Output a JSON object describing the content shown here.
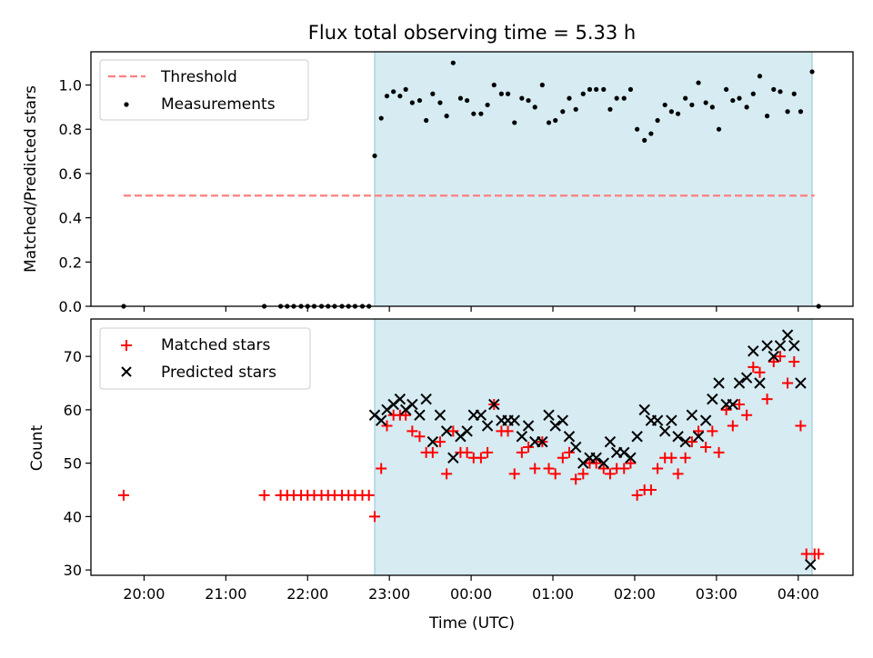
{
  "chart_data": [
    {
      "type": "scatter",
      "title": "Flux total observing time = 5.33 h",
      "xlabel": "",
      "ylabel": "Matched/Predicted stars",
      "xlim_hours": [
        19.35,
        28.67
      ],
      "ylim": [
        0.0,
        1.15
      ],
      "yticks": [
        "0.0",
        "0.2",
        "0.4",
        "0.6",
        "0.8",
        "1.0"
      ],
      "grid": false,
      "legend_position": "upper-left",
      "shaded_region_hours": [
        22.82,
        28.17
      ],
      "shade_color": "#add8e6",
      "threshold": {
        "name": "Threshold",
        "value": 0.5,
        "x_range_hours": [
          19.75,
          28.2
        ],
        "color": "#ff7f7f"
      },
      "series": [
        {
          "name": "Measurements",
          "color": "#000000",
          "x_hours": [
            19.75,
            21.47,
            21.67,
            21.75,
            21.83,
            21.92,
            22.0,
            22.08,
            22.17,
            22.25,
            22.33,
            22.42,
            22.5,
            22.58,
            22.67,
            22.75,
            22.82,
            22.9,
            22.97,
            23.05,
            23.13,
            23.2,
            23.28,
            23.37,
            23.45,
            23.53,
            23.62,
            23.7,
            23.78,
            23.87,
            23.95,
            24.03,
            24.12,
            24.2,
            24.28,
            24.37,
            24.45,
            24.53,
            24.62,
            24.7,
            24.78,
            24.87,
            24.95,
            25.03,
            25.12,
            25.2,
            25.28,
            25.37,
            25.45,
            25.53,
            25.62,
            25.7,
            25.78,
            25.87,
            25.95,
            26.03,
            26.12,
            26.2,
            26.28,
            26.37,
            26.45,
            26.53,
            26.62,
            26.7,
            26.78,
            26.87,
            26.95,
            27.03,
            27.12,
            27.2,
            27.28,
            27.37,
            27.45,
            27.53,
            27.62,
            27.7,
            27.78,
            27.87,
            27.95,
            28.03,
            28.17,
            28.25
          ],
          "y": [
            0.0,
            0.0,
            0.0,
            0.0,
            0.0,
            0.0,
            0.0,
            0.0,
            0.0,
            0.0,
            0.0,
            0.0,
            0.0,
            0.0,
            0.0,
            0.0,
            0.68,
            0.85,
            0.95,
            0.97,
            0.95,
            0.98,
            0.92,
            0.93,
            0.84,
            0.96,
            0.92,
            0.86,
            1.1,
            0.94,
            0.93,
            0.87,
            0.87,
            0.91,
            1.0,
            0.96,
            0.96,
            0.83,
            0.94,
            0.93,
            0.9,
            1.0,
            0.83,
            0.84,
            0.88,
            0.94,
            0.89,
            0.96,
            0.98,
            0.98,
            0.98,
            0.89,
            0.94,
            0.94,
            0.98,
            0.8,
            0.75,
            0.78,
            0.84,
            0.91,
            0.88,
            0.87,
            0.94,
            0.91,
            1.01,
            0.92,
            0.9,
            0.8,
            0.98,
            0.93,
            0.94,
            0.9,
            0.96,
            1.04,
            0.86,
            0.98,
            0.97,
            0.88,
            0.96,
            0.88,
            1.06,
            0.0
          ]
        }
      ]
    },
    {
      "type": "scatter",
      "title": "",
      "xlabel": "Time (UTC)",
      "ylabel": "Count",
      "xlim_hours": [
        19.35,
        28.67
      ],
      "ylim": [
        29.0,
        77.0
      ],
      "yticks": [
        "30",
        "40",
        "50",
        "60",
        "70"
      ],
      "xticks": [
        "20:00",
        "21:00",
        "22:00",
        "23:00",
        "00:00",
        "01:00",
        "02:00",
        "03:00",
        "04:00"
      ],
      "grid": false,
      "legend_position": "upper-left",
      "shaded_region_hours": [
        22.82,
        28.17
      ],
      "shade_color": "#add8e6",
      "series": [
        {
          "name": "Matched stars",
          "marker": "plus",
          "color": "#ff0000",
          "x_hours": [
            19.75,
            21.47,
            21.67,
            21.75,
            21.83,
            21.92,
            22.0,
            22.08,
            22.17,
            22.25,
            22.33,
            22.42,
            22.5,
            22.58,
            22.67,
            22.75,
            22.82,
            22.9,
            22.97,
            23.05,
            23.13,
            23.2,
            23.28,
            23.37,
            23.45,
            23.53,
            23.62,
            23.7,
            23.78,
            23.87,
            23.95,
            24.03,
            24.12,
            24.2,
            24.28,
            24.37,
            24.45,
            24.53,
            24.62,
            24.7,
            24.78,
            24.87,
            24.95,
            25.03,
            25.12,
            25.2,
            25.28,
            25.37,
            25.45,
            25.53,
            25.62,
            25.7,
            25.78,
            25.87,
            25.95,
            26.03,
            26.12,
            26.2,
            26.28,
            26.37,
            26.45,
            26.53,
            26.62,
            26.7,
            26.78,
            26.87,
            26.95,
            27.03,
            27.12,
            27.2,
            27.28,
            27.37,
            27.45,
            27.53,
            27.62,
            27.7,
            27.78,
            27.87,
            27.95,
            28.03,
            28.1,
            28.2,
            28.25
          ],
          "y": [
            44,
            44,
            44,
            44,
            44,
            44,
            44,
            44,
            44,
            44,
            44,
            44,
            44,
            44,
            44,
            44,
            40,
            49,
            57,
            59,
            59,
            59,
            56,
            55,
            52,
            52,
            54,
            48,
            56,
            52,
            52,
            51,
            51,
            52,
            61,
            56,
            56,
            48,
            52,
            53,
            49,
            54,
            49,
            48,
            51,
            52,
            47,
            48,
            50,
            50,
            49,
            48,
            49,
            49,
            50,
            44,
            45,
            45,
            49,
            51,
            51,
            48,
            51,
            54,
            56,
            53,
            56,
            52,
            60,
            57,
            61,
            59,
            68,
            67,
            62,
            69,
            70,
            65,
            69,
            57,
            33,
            33,
            33
          ]
        },
        {
          "name": "Predicted stars",
          "marker": "x",
          "color": "#000000",
          "x_hours": [
            22.82,
            22.9,
            22.97,
            23.05,
            23.13,
            23.2,
            23.28,
            23.37,
            23.45,
            23.53,
            23.62,
            23.7,
            23.78,
            23.87,
            23.95,
            24.03,
            24.12,
            24.2,
            24.28,
            24.37,
            24.45,
            24.53,
            24.62,
            24.7,
            24.78,
            24.87,
            24.95,
            25.03,
            25.12,
            25.2,
            25.28,
            25.37,
            25.45,
            25.53,
            25.62,
            25.7,
            25.78,
            25.87,
            25.95,
            26.03,
            26.12,
            26.2,
            26.28,
            26.37,
            26.45,
            26.53,
            26.62,
            26.7,
            26.78,
            26.87,
            26.95,
            27.03,
            27.12,
            27.2,
            27.28,
            27.37,
            27.45,
            27.53,
            27.62,
            27.7,
            27.78,
            27.87,
            27.95,
            28.03,
            28.15
          ],
          "y": [
            59,
            58,
            60,
            61,
            62,
            60,
            61,
            59,
            62,
            54,
            59,
            56,
            51,
            55,
            56,
            59,
            59,
            57,
            61,
            58,
            58,
            58,
            55,
            57,
            54,
            54,
            59,
            57,
            58,
            55,
            53,
            50,
            51,
            51,
            50,
            54,
            52,
            52,
            51,
            55,
            60,
            58,
            58,
            56,
            58,
            55,
            54,
            59,
            55,
            58,
            62,
            65,
            61,
            61,
            65,
            66,
            71,
            65,
            72,
            70,
            72,
            74,
            72,
            65,
            31
          ]
        }
      ]
    }
  ]
}
